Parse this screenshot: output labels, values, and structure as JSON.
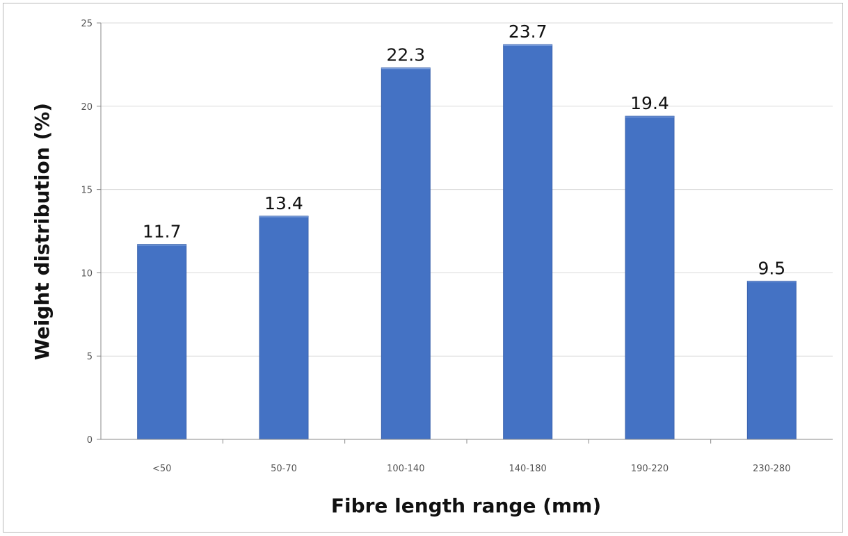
{
  "chart_data": {
    "type": "bar",
    "title": "",
    "xlabel": "Fibre length range (mm)",
    "ylabel": "Weight distribution (%)",
    "categories": [
      "<50",
      "50-70",
      "100-140",
      "140-180",
      "190-220",
      "230-280"
    ],
    "values": [
      11.7,
      13.4,
      22.3,
      23.7,
      19.4,
      9.5
    ],
    "data_labels": [
      "11.7",
      "13.4",
      "22.3",
      "23.7",
      "19.4",
      "9.5"
    ],
    "ylim": [
      0,
      25
    ],
    "yticks": [
      0,
      5,
      10,
      15,
      20,
      25
    ],
    "ytick_labels": [
      "0",
      "5",
      "10",
      "15",
      "20",
      "25"
    ],
    "grid": true,
    "legend": "none",
    "bar_color": "#4472c4",
    "grid_color": "#d9d9d9"
  }
}
